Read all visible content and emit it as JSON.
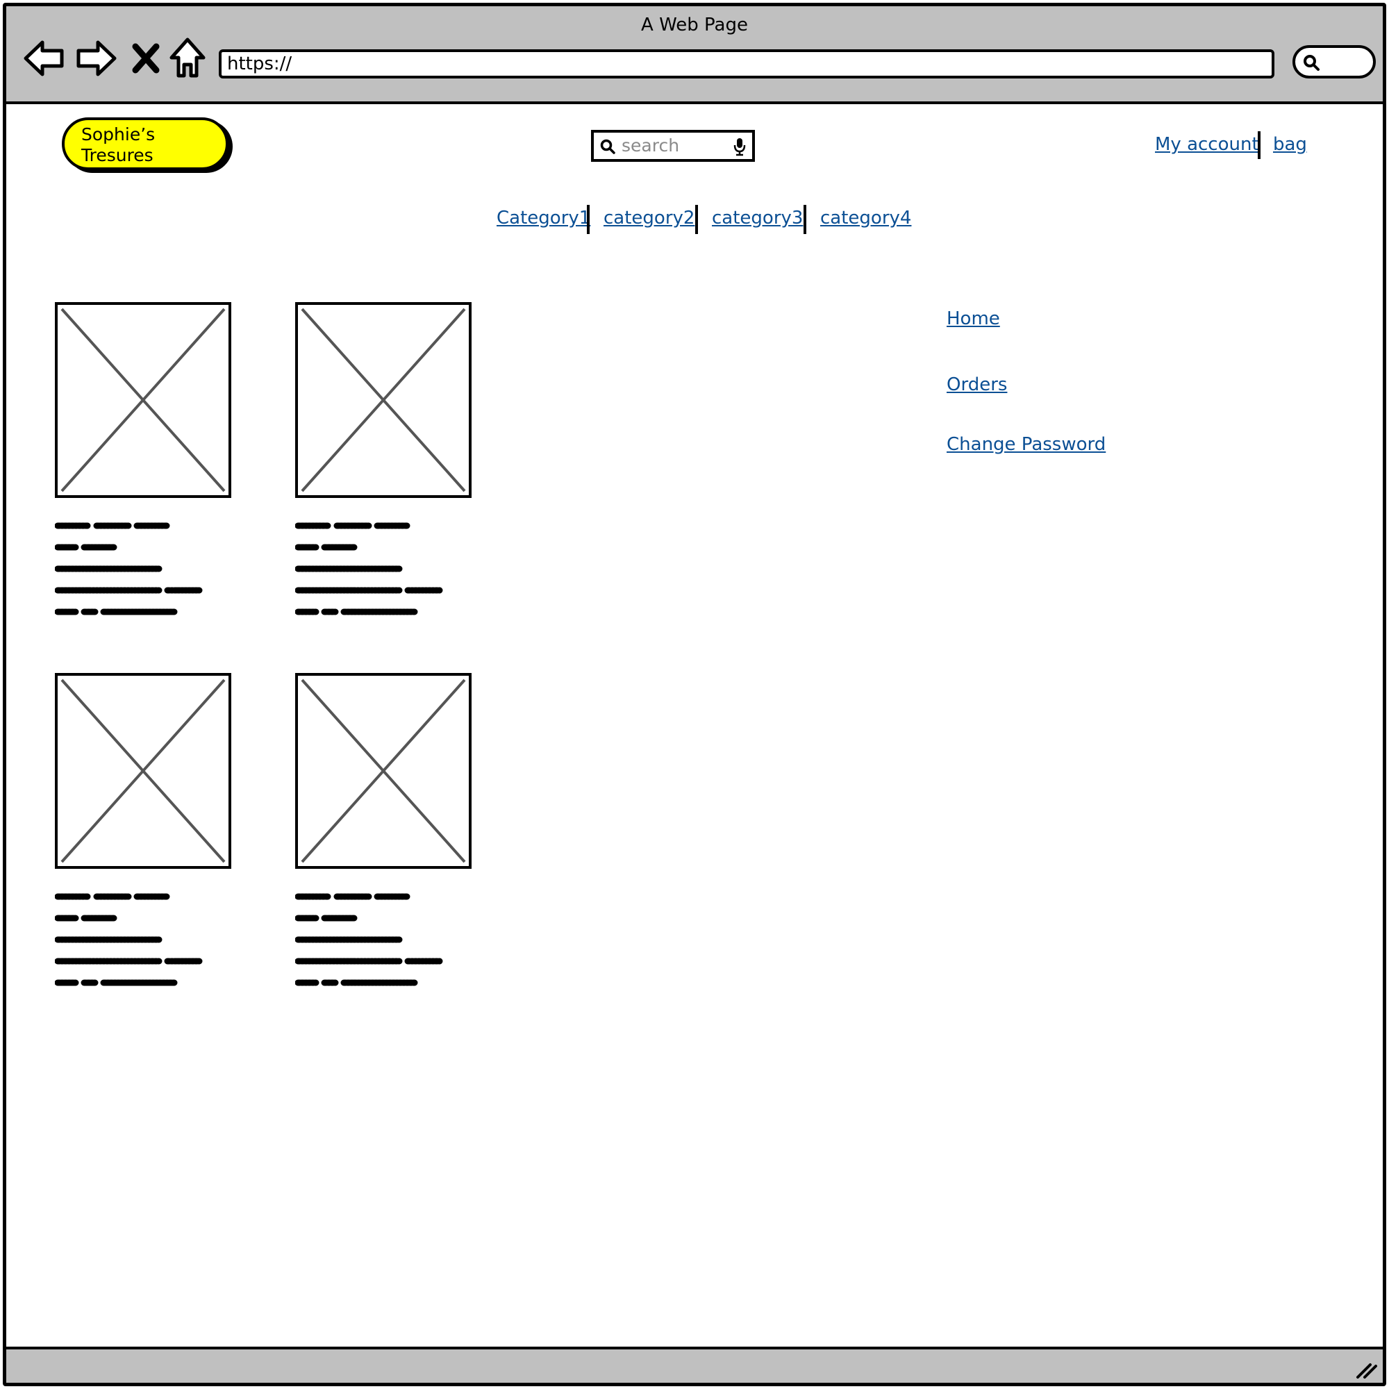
{
  "window": {
    "title": "A Web Page",
    "url": "https://"
  },
  "header": {
    "logo_line1": "Sophie’s",
    "logo_line2": "Tresures",
    "search_placeholder": "search",
    "account_link": "My account",
    "bag_link": "bag"
  },
  "categories": [
    "Category1",
    "category2",
    "category3",
    "category4"
  ],
  "sidebar": {
    "items": [
      "Home",
      "Orders",
      "Change Password"
    ]
  },
  "colors": {
    "link": "#0b4f94",
    "logo_bg": "#ffff00",
    "chrome_bg": "#c0c0c0"
  },
  "icons": [
    "back-arrow-icon",
    "forward-arrow-icon",
    "stop-icon",
    "home-icon",
    "search-icon",
    "microphone-icon",
    "resize-grip-icon"
  ]
}
